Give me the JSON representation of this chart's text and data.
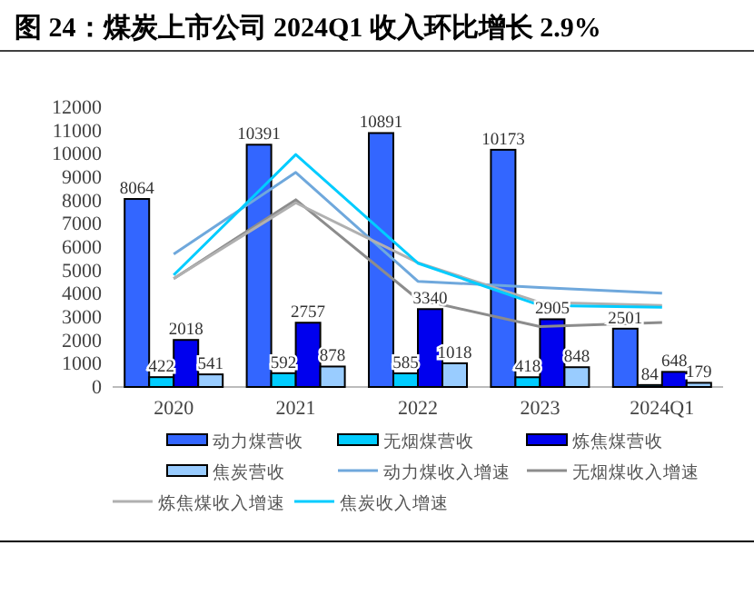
{
  "chart_data": {
    "type": "bar",
    "title": "图 24：煤炭上市公司 2024Q1 收入环比增长 2.9%",
    "categories": [
      "2020",
      "2021",
      "2022",
      "2023",
      "2024Q1"
    ],
    "series": [
      {
        "name": "动力煤营收",
        "color": "#3366ff",
        "values": [
          8064,
          10391,
          10891,
          10173,
          2501
        ],
        "value_labels": [
          "8064",
          "10391",
          "10891",
          "10173",
          "2501"
        ]
      },
      {
        "name": "无烟煤营收",
        "color": "#00ccff",
        "values": [
          422,
          592,
          585,
          418,
          84
        ],
        "value_labels": [
          "422",
          "592",
          "585",
          "418",
          "84"
        ]
      },
      {
        "name": "炼焦煤营收",
        "color": "#0000ee",
        "values": [
          2018,
          2757,
          3340,
          2905,
          648
        ],
        "value_labels": [
          "2018",
          "2757",
          "3340",
          "2905",
          "648"
        ]
      },
      {
        "name": "焦炭营收",
        "color": "#99ccff",
        "values": [
          541,
          878,
          1018,
          848,
          179
        ],
        "value_labels": [
          "541",
          "878",
          "1018",
          "848",
          "179"
        ]
      },
      {
        "name": "动力煤收入增速",
        "type": "line",
        "color": "#6fa8dc",
        "values": [
          5700,
          9200,
          4530,
          4270,
          4020
        ]
      },
      {
        "name": "无烟煤收入增速",
        "type": "line",
        "color": "#8c8c8c",
        "values": [
          4650,
          8030,
          3760,
          2590,
          2770
        ]
      },
      {
        "name": "炼焦煤收入增速",
        "type": "line",
        "color": "#b0b0b0",
        "values": [
          4650,
          7900,
          5330,
          3630,
          3500
        ]
      },
      {
        "name": "焦炭收入增速",
        "type": "line",
        "color": "#00ccff",
        "values": [
          4800,
          9970,
          5310,
          3500,
          3420
        ]
      }
    ],
    "ylim": [
      0,
      12000
    ],
    "yticks": [
      0,
      1000,
      2000,
      3000,
      4000,
      5000,
      6000,
      7000,
      8000,
      9000,
      10000,
      11000,
      12000
    ],
    "legend": "bottom",
    "grid": false
  }
}
